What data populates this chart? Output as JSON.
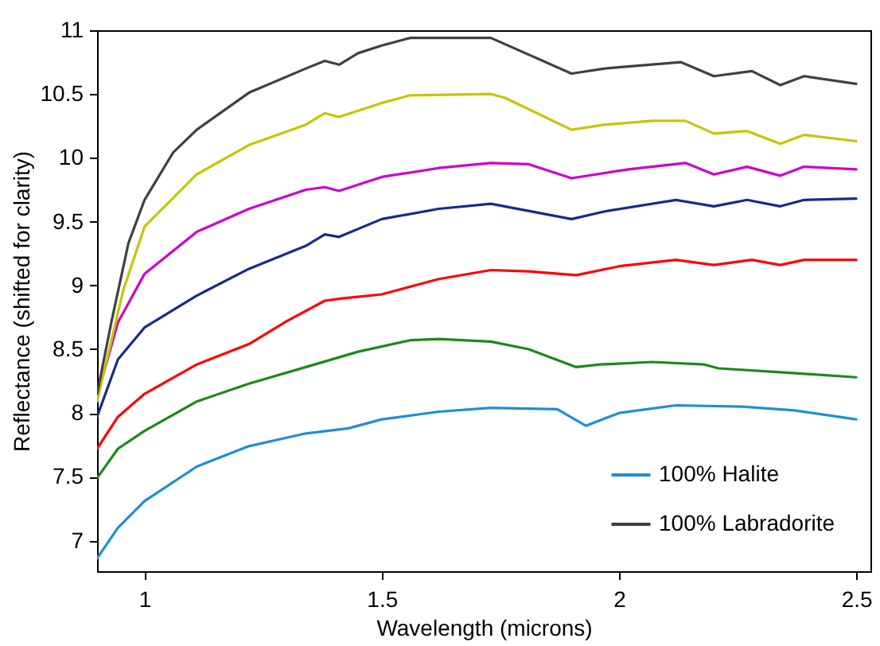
{
  "chart_data": {
    "type": "line",
    "xlabel": "Wavelength (microns)",
    "ylabel": "Reflectance (shifted for clarity)",
    "xlim": [
      0.9,
      2.53
    ],
    "ylim": [
      6.76,
      11
    ],
    "xticks": [
      1,
      1.5,
      2,
      2.5
    ],
    "yticks": [
      7,
      7.5,
      8,
      8.5,
      9,
      9.5,
      10,
      10.5,
      11
    ],
    "grid": false,
    "legend": "bottom right",
    "series": [
      {
        "name": "100% Halite",
        "color": "#1f8fd6",
        "x": [
          0.9,
          0.944,
          1.0,
          1.11,
          1.22,
          1.34,
          1.43,
          1.5,
          1.62,
          1.73,
          1.87,
          1.93,
          2.0,
          2.12,
          2.26,
          2.37,
          2.5
        ],
        "values": [
          6.86,
          7.1,
          7.31,
          7.58,
          7.74,
          7.84,
          7.88,
          7.95,
          8.01,
          8.04,
          8.03,
          7.9,
          8.0,
          8.06,
          8.05,
          8.02,
          7.95
        ]
      },
      {
        "color": "#1a8a1a",
        "x": [
          0.9,
          0.944,
          1.0,
          1.11,
          1.22,
          1.34,
          1.45,
          1.56,
          1.62,
          1.73,
          1.81,
          1.91,
          1.96,
          2.07,
          2.18,
          2.21,
          2.34,
          2.5
        ],
        "values": [
          7.49,
          7.72,
          7.86,
          8.09,
          8.23,
          8.36,
          8.48,
          8.57,
          8.58,
          8.56,
          8.5,
          8.36,
          8.38,
          8.4,
          8.38,
          8.35,
          8.32,
          8.28
        ]
      },
      {
        "color": "#ff0000",
        "x": [
          0.9,
          0.944,
          1.0,
          1.11,
          1.22,
          1.3,
          1.38,
          1.42,
          1.5,
          1.62,
          1.73,
          1.81,
          1.91,
          2.0,
          2.12,
          2.2,
          2.28,
          2.34,
          2.39,
          2.5
        ],
        "values": [
          7.72,
          7.97,
          8.15,
          8.38,
          8.54,
          8.72,
          8.88,
          8.9,
          8.93,
          9.05,
          9.12,
          9.11,
          9.08,
          9.15,
          9.2,
          9.16,
          9.2,
          9.16,
          9.2,
          9.2
        ]
      },
      {
        "color": "#1a2a8a",
        "x": [
          0.9,
          0.944,
          1.0,
          1.11,
          1.22,
          1.34,
          1.38,
          1.41,
          1.5,
          1.62,
          1.73,
          1.9,
          1.97,
          2.12,
          2.2,
          2.27,
          2.34,
          2.39,
          2.5
        ],
        "values": [
          7.97,
          8.42,
          8.67,
          8.92,
          9.13,
          9.31,
          9.4,
          9.38,
          9.52,
          9.6,
          9.64,
          9.52,
          9.58,
          9.67,
          9.62,
          9.67,
          9.62,
          9.67,
          9.68
        ]
      },
      {
        "color": "#cc00cc",
        "x": [
          0.9,
          0.944,
          1.0,
          1.11,
          1.22,
          1.34,
          1.38,
          1.41,
          1.5,
          1.62,
          1.73,
          1.81,
          1.9,
          2.02,
          2.14,
          2.2,
          2.27,
          2.34,
          2.39,
          2.5
        ],
        "values": [
          8.13,
          8.71,
          9.09,
          9.42,
          9.6,
          9.75,
          9.77,
          9.74,
          9.85,
          9.92,
          9.96,
          9.95,
          9.84,
          9.91,
          9.96,
          9.87,
          9.93,
          9.86,
          9.93,
          9.91
        ]
      },
      {
        "color": "#c8c400",
        "x": [
          0.9,
          0.955,
          1.0,
          1.11,
          1.22,
          1.34,
          1.38,
          1.41,
          1.5,
          1.56,
          1.73,
          1.76,
          1.9,
          1.97,
          2.07,
          2.14,
          2.2,
          2.27,
          2.34,
          2.39,
          2.5
        ],
        "values": [
          8.09,
          8.96,
          9.46,
          9.87,
          10.1,
          10.26,
          10.35,
          10.32,
          10.43,
          10.49,
          10.5,
          10.47,
          10.22,
          10.26,
          10.29,
          10.29,
          10.19,
          10.21,
          10.11,
          10.18,
          10.13
        ]
      },
      {
        "name": "100% Labradorite",
        "color": "#404040",
        "x": [
          0.9,
          0.93,
          0.966,
          1.0,
          1.06,
          1.11,
          1.22,
          1.34,
          1.38,
          1.41,
          1.45,
          1.5,
          1.56,
          1.73,
          1.9,
          1.97,
          2.13,
          2.2,
          2.28,
          2.34,
          2.39,
          2.5
        ],
        "values": [
          8.15,
          8.71,
          9.33,
          9.67,
          10.04,
          10.22,
          10.51,
          10.7,
          10.76,
          10.73,
          10.82,
          10.88,
          10.94,
          10.94,
          10.66,
          10.7,
          10.75,
          10.64,
          10.68,
          10.57,
          10.64,
          10.58
        ]
      }
    ]
  }
}
